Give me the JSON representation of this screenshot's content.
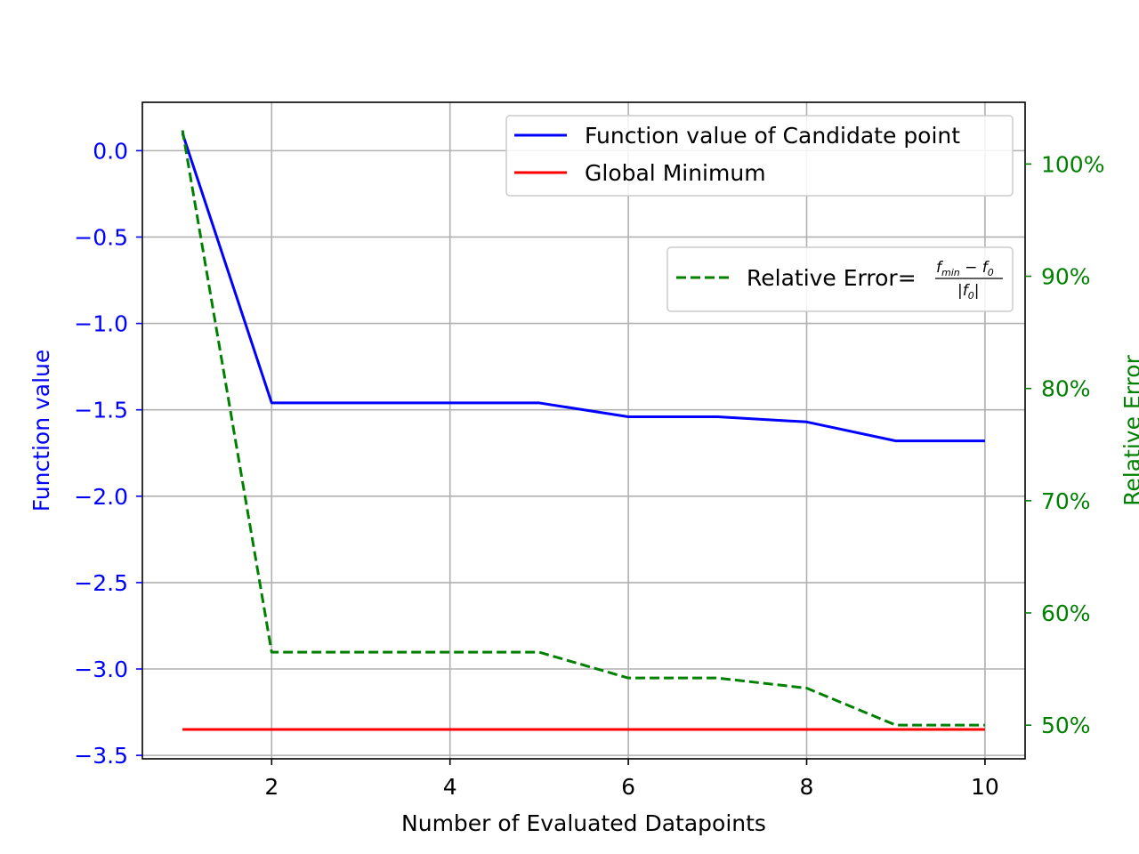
{
  "chart_data": {
    "type": "line",
    "title": "",
    "xlabel": "Number of Evaluated Datapoints",
    "ylabel": "Function value",
    "y2label": "Relative Error",
    "xlim": [
      0.55,
      10.45
    ],
    "ylim": [
      -3.52,
      0.28
    ],
    "y2lim": [
      0.47,
      1.055
    ],
    "xticks": [
      2,
      4,
      6,
      8,
      10
    ],
    "xtick_labels": [
      "2",
      "4",
      "6",
      "8",
      "10"
    ],
    "yticks": [
      0.0,
      -0.5,
      -1.0,
      -1.5,
      -2.0,
      -2.5,
      -3.0,
      -3.5
    ],
    "ytick_labels": [
      "0.0",
      "−0.5",
      "−1.0",
      "−1.5",
      "−2.0",
      "−2.5",
      "−3.0",
      "−3.5"
    ],
    "y2ticks": [
      0.5,
      0.6,
      0.7,
      0.8,
      0.9,
      1.0
    ],
    "y2tick_labels": [
      "50%",
      "60%",
      "70%",
      "80%",
      "90%",
      "100%"
    ],
    "grid": true,
    "x": [
      1,
      2,
      3,
      4,
      5,
      6,
      7,
      8,
      9,
      10
    ],
    "series": [
      {
        "name": "Function value of Candidate point",
        "axis": "left",
        "color": "#0000ff",
        "style": "solid",
        "values": [
          0.1,
          -1.46,
          -1.46,
          -1.46,
          -1.46,
          -1.54,
          -1.54,
          -1.57,
          -1.68,
          -1.68
        ]
      },
      {
        "name": "Global Minimum",
        "axis": "left",
        "color": "#ff0000",
        "style": "solid",
        "values": [
          -3.35,
          -3.35,
          -3.35,
          -3.35,
          -3.35,
          -3.35,
          -3.35,
          -3.35,
          -3.35,
          -3.35
        ]
      },
      {
        "name": "Relative Error=",
        "axis": "right",
        "color": "#008000",
        "style": "dashed",
        "values": [
          1.03,
          0.565,
          0.565,
          0.565,
          0.565,
          0.542,
          0.542,
          0.533,
          0.5,
          0.5
        ]
      }
    ],
    "legend_left": {
      "placement": "upper-right",
      "entries": [
        "Function value of Candidate point",
        "Global Minimum"
      ]
    },
    "legend_right": {
      "placement": "upper-right",
      "entries": [
        "Relative Error="
      ],
      "formula_numerator_f": "f",
      "formula_numerator_sub": "min",
      "formula_minus": " − f",
      "formula_sub0": "0",
      "formula_denominator": "|f",
      "formula_den_sub": "0",
      "formula_den_close": "|"
    },
    "colors": {
      "left_axis": "#0000ff",
      "right_axis": "#008000",
      "grid": "#b0b0b0"
    }
  }
}
